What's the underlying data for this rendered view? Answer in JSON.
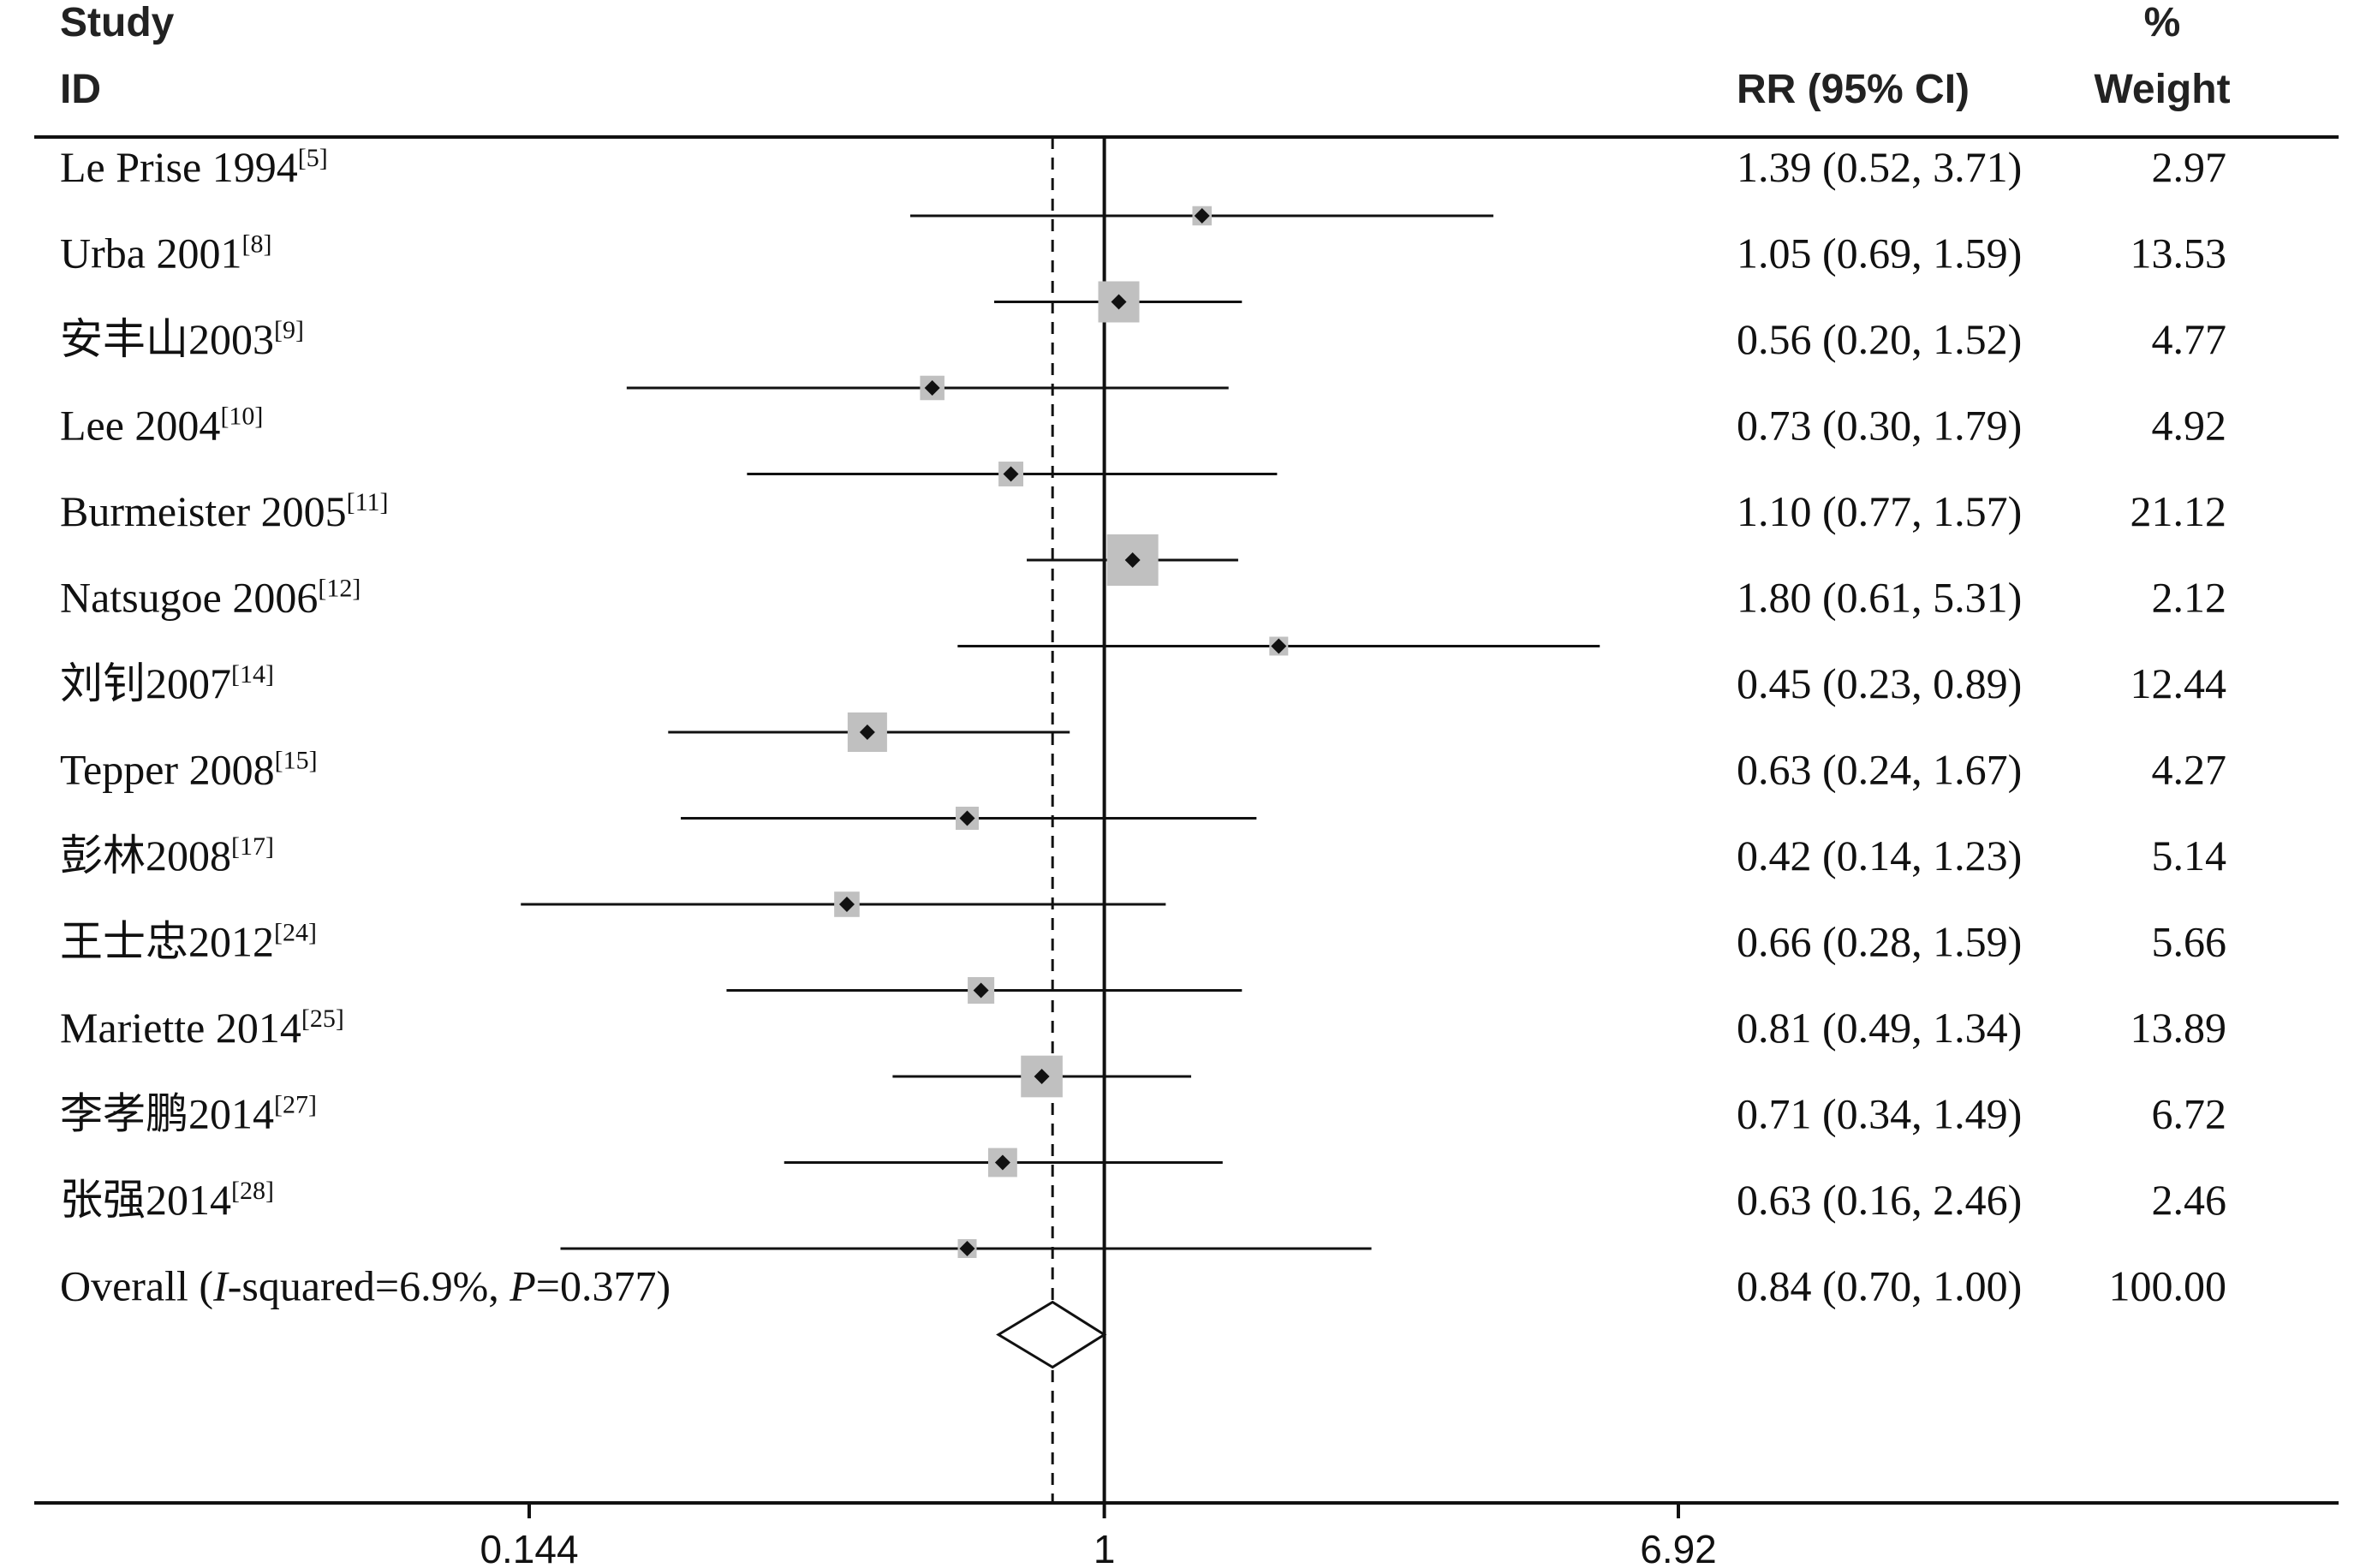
{
  "headers": {
    "study_line1": "Study",
    "study_line2": "ID",
    "rr": "RR (95% CI)",
    "weight_line1": "%",
    "weight_line2": "Weight"
  },
  "chart_data": {
    "type": "forest",
    "x_scale": "log",
    "xlim": [
      0.144,
      6.92
    ],
    "x_ticks": [
      "0.144",
      "1",
      "6.92"
    ],
    "null_line": 1,
    "pooled_reference_line": 0.84,
    "studies": [
      {
        "name": "Le Prise 1994",
        "ref": "[5]",
        "rr": 1.39,
        "lo": 0.52,
        "hi": 3.71,
        "ci_text": "1.39 (0.52, 3.71)",
        "weight": 2.97,
        "weight_text": "2.97"
      },
      {
        "name": "Urba 2001",
        "ref": "[8]",
        "rr": 1.05,
        "lo": 0.69,
        "hi": 1.59,
        "ci_text": "1.05 (0.69, 1.59)",
        "weight": 13.53,
        "weight_text": "13.53"
      },
      {
        "name": "安丰山2003",
        "ref": "[9]",
        "rr": 0.56,
        "lo": 0.2,
        "hi": 1.52,
        "ci_text": "0.56 (0.20, 1.52)",
        "weight": 4.77,
        "weight_text": "4.77"
      },
      {
        "name": "Lee 2004",
        "ref": "[10]",
        "rr": 0.73,
        "lo": 0.3,
        "hi": 1.79,
        "ci_text": "0.73 (0.30, 1.79)",
        "weight": 4.92,
        "weight_text": "4.92"
      },
      {
        "name": "Burmeister 2005",
        "ref": "[11]",
        "rr": 1.1,
        "lo": 0.77,
        "hi": 1.57,
        "ci_text": "1.10 (0.77, 1.57)",
        "weight": 21.12,
        "weight_text": "21.12"
      },
      {
        "name": "Natsugoe 2006",
        "ref": "[12]",
        "rr": 1.8,
        "lo": 0.61,
        "hi": 5.31,
        "ci_text": "1.80 (0.61, 5.31)",
        "weight": 2.12,
        "weight_text": "2.12"
      },
      {
        "name": "刘钊2007",
        "ref": "[14]",
        "rr": 0.45,
        "lo": 0.23,
        "hi": 0.89,
        "ci_text": "0.45 (0.23, 0.89)",
        "weight": 12.44,
        "weight_text": "12.44"
      },
      {
        "name": "Tepper 2008",
        "ref": "[15]",
        "rr": 0.63,
        "lo": 0.24,
        "hi": 1.67,
        "ci_text": "0.63 (0.24, 1.67)",
        "weight": 4.27,
        "weight_text": "4.27"
      },
      {
        "name": "彭林2008",
        "ref": "[17]",
        "rr": 0.42,
        "lo": 0.14,
        "hi": 1.23,
        "ci_text": "0.42 (0.14, 1.23)",
        "weight": 5.14,
        "weight_text": "5.14"
      },
      {
        "name": "王士忠2012",
        "ref": "[24]",
        "rr": 0.66,
        "lo": 0.28,
        "hi": 1.59,
        "ci_text": "0.66 (0.28, 1.59)",
        "weight": 5.66,
        "weight_text": "5.66"
      },
      {
        "name": "Mariette 2014",
        "ref": "[25]",
        "rr": 0.81,
        "lo": 0.49,
        "hi": 1.34,
        "ci_text": "0.81 (0.49, 1.34)",
        "weight": 13.89,
        "weight_text": "13.89"
      },
      {
        "name": "李孝鹏2014",
        "ref": "[27]",
        "rr": 0.71,
        "lo": 0.34,
        "hi": 1.49,
        "ci_text": "0.71 (0.34, 1.49)",
        "weight": 6.72,
        "weight_text": "6.72"
      },
      {
        "name": "张强2014",
        "ref": "[28]",
        "rr": 0.63,
        "lo": 0.16,
        "hi": 2.46,
        "ci_text": "0.63 (0.16, 2.46)",
        "weight": 2.46,
        "weight_text": "2.46"
      }
    ],
    "overall": {
      "label_prefix": "Overall (",
      "label_i": "I",
      "label_mid": "-squared=6.9%, ",
      "label_p": "P",
      "label_end": "=0.377)",
      "rr": 0.84,
      "lo": 0.7,
      "hi": 1.0,
      "ci_text": "0.84 (0.70, 1.00)",
      "weight_text": "100.00"
    }
  },
  "colors": {
    "box_fill": "#c0c0c0",
    "line": "#111111",
    "text": "#111111"
  }
}
